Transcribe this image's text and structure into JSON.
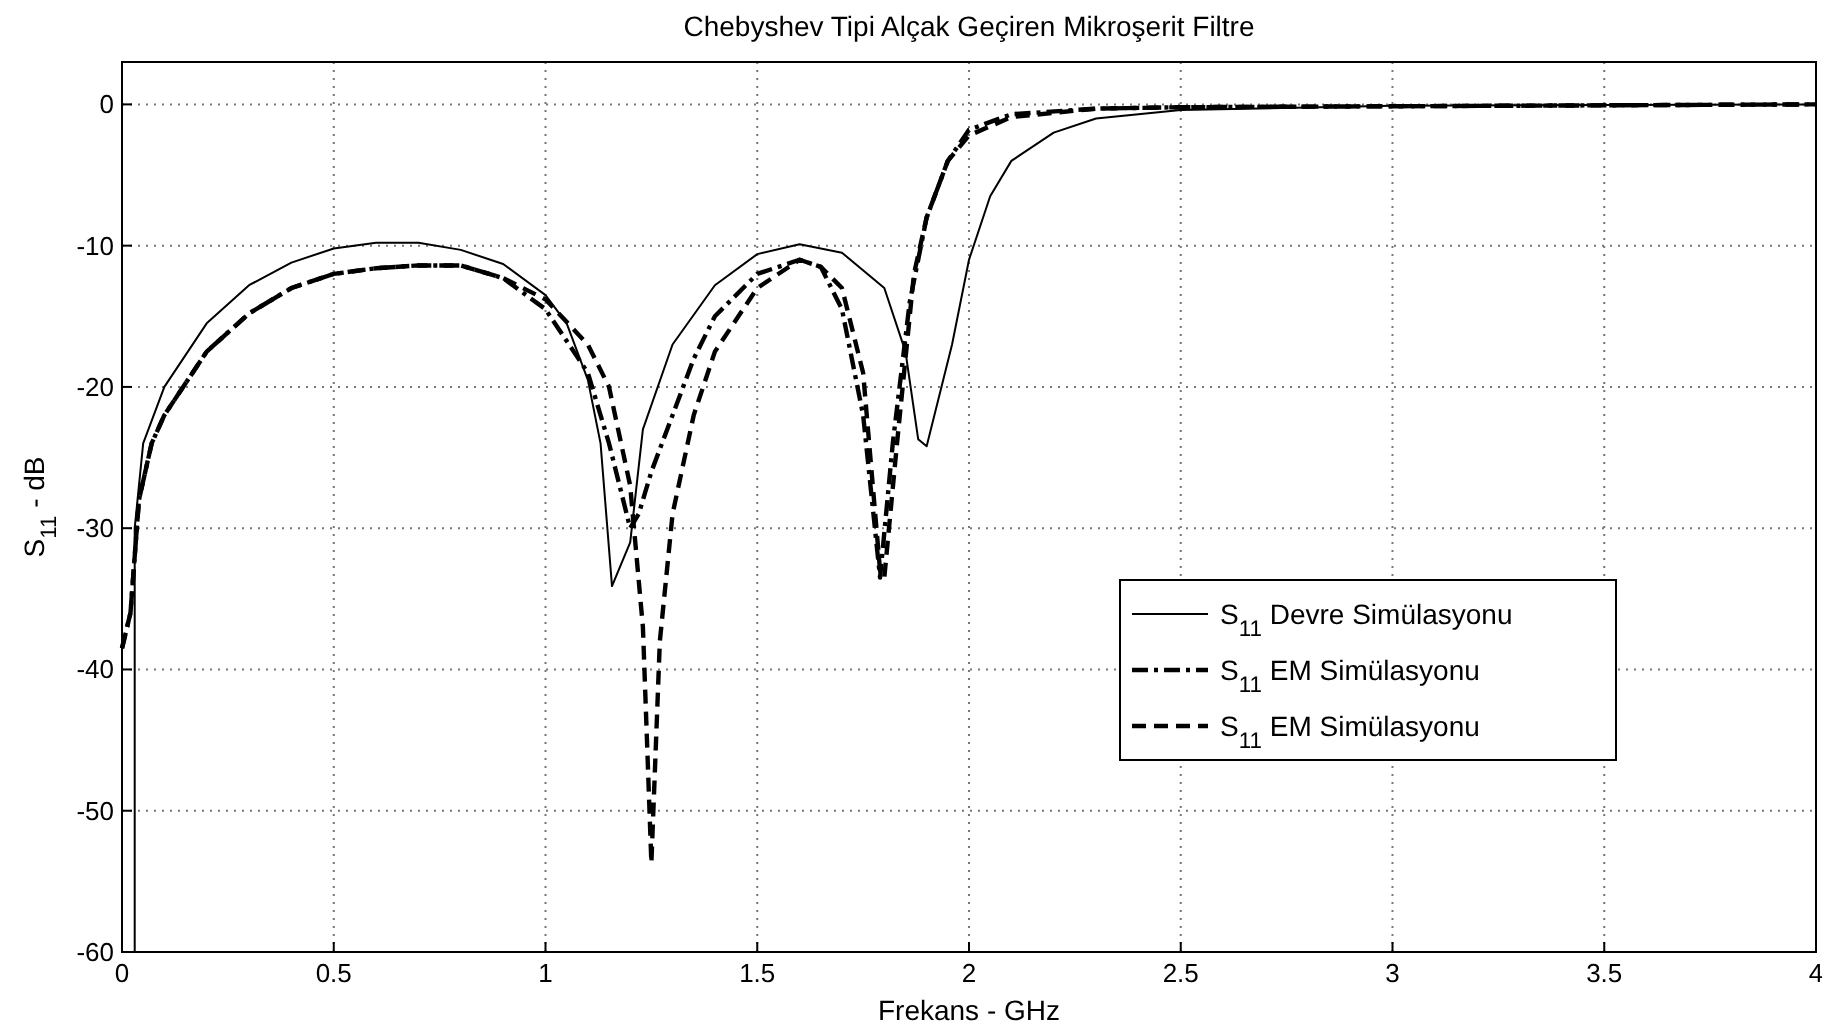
{
  "chart_data": {
    "type": "line",
    "title": "Chebyshev Tipi Alçak Geçiren Mikroşerit Filtre",
    "xlabel": "Frekans - GHz",
    "ylabel": "S$_{11}$ - dB",
    "xlim": [
      0,
      4
    ],
    "ylim": [
      -60,
      3
    ],
    "xticks": [
      0,
      0.5,
      1,
      1.5,
      2,
      2.5,
      3,
      3.5,
      4
    ],
    "yticks": [
      -60,
      -50,
      -40,
      -30,
      -20,
      -10,
      0
    ],
    "grid": true,
    "legend": "bottom right",
    "series": [
      {
        "name": "S$_{11}$ Devre Simülasyonu",
        "color": "#000000",
        "line_style": "solid",
        "x": [
          0.03,
          0.03,
          0.05,
          0.1,
          0.2,
          0.3,
          0.4,
          0.5,
          0.6,
          0.7,
          0.8,
          0.9,
          1.0,
          1.05,
          1.1,
          1.13,
          1.157,
          1.2,
          1.23,
          1.3,
          1.4,
          1.5,
          1.6,
          1.7,
          1.8,
          1.85,
          1.88,
          1.9,
          1.96,
          2.0,
          2.05,
          2.1,
          2.2,
          2.3,
          2.5,
          3,
          4
        ],
        "values": [
          -60,
          -30,
          -24,
          -20,
          -15.5,
          -12.8,
          -11.2,
          -10.2,
          -9.8,
          -9.8,
          -10.3,
          -11.3,
          -13.5,
          -15.5,
          -19.5,
          -24,
          -34.1,
          -31,
          -23,
          -17,
          -12.8,
          -10.6,
          -9.9,
          -10.5,
          -13,
          -17.5,
          -23.7,
          -24.2,
          -17,
          -11,
          -6.5,
          -4,
          -2,
          -1,
          -0.4,
          -0.1,
          0
        ]
      },
      {
        "name": "S$_{11}$ EM Simülasyonu",
        "color": "#000000",
        "line_style": "dashdot",
        "x": [
          0,
          0.02,
          0.04,
          0.07,
          0.1,
          0.2,
          0.3,
          0.4,
          0.5,
          0.6,
          0.7,
          0.8,
          0.9,
          1.0,
          1.1,
          1.15,
          1.2,
          1.22,
          1.25,
          1.3,
          1.35,
          1.4,
          1.5,
          1.6,
          1.65,
          1.7,
          1.75,
          1.79,
          1.82,
          1.86,
          1.9,
          1.95,
          2.0,
          2.1,
          2.3,
          2.5,
          4
        ],
        "values": [
          -38.5,
          -36,
          -28,
          -24,
          -22,
          -17.5,
          -14.8,
          -13,
          -12,
          -11.6,
          -11.4,
          -11.4,
          -12.3,
          -14.5,
          -19,
          -24,
          -30,
          -29,
          -26,
          -22,
          -18,
          -15,
          -12,
          -11,
          -11.5,
          -14.5,
          -22,
          -33.5,
          -24,
          -14,
          -8,
          -4,
          -1.8,
          -0.7,
          -0.3,
          -0.2,
          0
        ]
      },
      {
        "name": "S$_{11}$ EM Simülasyonu",
        "color": "#000000",
        "line_style": "dashed",
        "x": [
          0,
          0.02,
          0.04,
          0.07,
          0.1,
          0.2,
          0.3,
          0.4,
          0.5,
          0.6,
          0.7,
          0.8,
          0.9,
          1.0,
          1.1,
          1.15,
          1.2,
          1.23,
          1.25,
          1.27,
          1.3,
          1.35,
          1.4,
          1.5,
          1.6,
          1.65,
          1.7,
          1.75,
          1.79,
          1.8,
          1.83,
          1.87,
          1.9,
          1.95,
          2.0,
          2.1,
          2.3,
          2.5,
          4
        ],
        "values": [
          -38.5,
          -36,
          -28,
          -24,
          -22,
          -17.5,
          -14.8,
          -13,
          -12,
          -11.6,
          -11.4,
          -11.4,
          -12.3,
          -13.8,
          -17,
          -20,
          -27,
          -37,
          -53.7,
          -38,
          -29,
          -22,
          -17.5,
          -13,
          -11,
          -11.5,
          -13,
          -19,
          -33,
          -33.5,
          -24,
          -12,
          -8,
          -4,
          -2.2,
          -0.9,
          -0.3,
          -0.2,
          0
        ]
      }
    ]
  }
}
